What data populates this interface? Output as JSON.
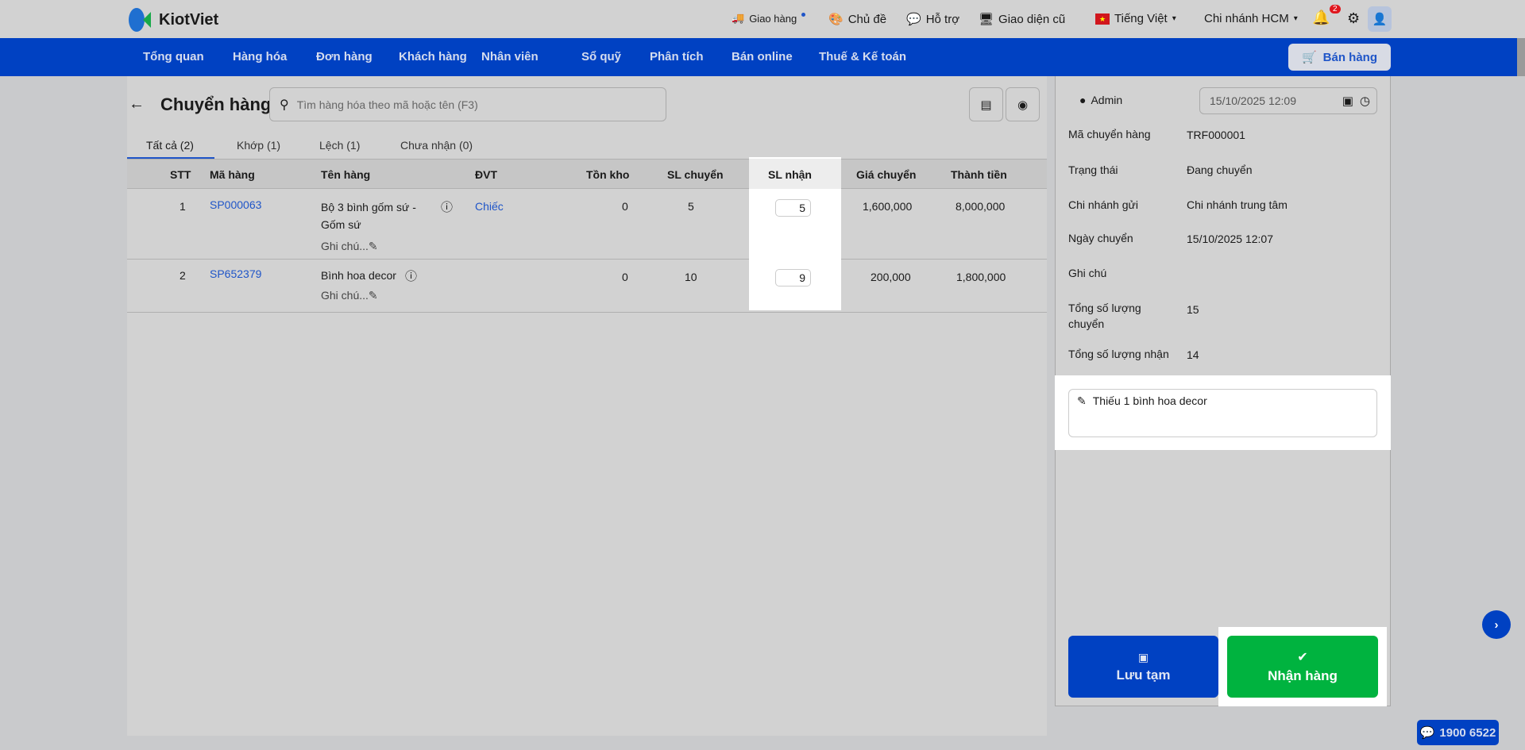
{
  "brand": {
    "name": "KiotViet"
  },
  "topbar": {
    "delivery": "Giao hàng",
    "theme": "Chủ đề",
    "support": "Hỗ trợ",
    "old_ui": "Giao diện cũ",
    "language": "Tiếng Việt",
    "branch": "Chi nhánh HCM",
    "notifications": "2"
  },
  "nav": {
    "items": [
      "Tổng quan",
      "Hàng hóa",
      "Đơn hàng",
      "Khách hàng",
      "Nhân viên",
      "Sổ quỹ",
      "Phân tích",
      "Bán online",
      "Thuế & Kế toán"
    ],
    "sell_button": "Bán hàng"
  },
  "page": {
    "title": "Chuyển hàng",
    "search_placeholder": "Tìm hàng hóa theo mã hoặc tên (F3)"
  },
  "tabs": [
    {
      "label": "Tất cả (2)",
      "active": true
    },
    {
      "label": "Khớp (1)"
    },
    {
      "label": "Lệch (1)"
    },
    {
      "label": "Chưa nhận (0)"
    }
  ],
  "table": {
    "headers": [
      "STT",
      "Mã hàng",
      "Tên hàng",
      "ĐVT",
      "Tồn kho",
      "SL chuyển",
      "SL nhận",
      "Giá chuyển",
      "Thành tiền"
    ],
    "rows": [
      {
        "stt": "1",
        "code": "SP000063",
        "name": "Bộ 3 bình gốm sứ - Gốm sứ",
        "note": "Ghi chú...",
        "unit": "Chiếc",
        "stock": "0",
        "sent": "5",
        "received": "5",
        "price": "1,600,000",
        "total": "8,000,000"
      },
      {
        "stt": "2",
        "code": "SP652379",
        "name": "Bình hoa decor",
        "note": "Ghi chú...",
        "unit": "",
        "stock": "0",
        "sent": "10",
        "received": "9",
        "price": "200,000",
        "total": "1,800,000"
      }
    ]
  },
  "panel": {
    "user": "Admin",
    "datetime": "15/10/2025 12:09",
    "fields": [
      {
        "label": "Mã chuyển hàng",
        "value": "TRF000001"
      },
      {
        "label": "Trạng thái",
        "value": "Đang chuyển"
      },
      {
        "label": "Chi nhánh gửi",
        "value": "Chi nhánh trung tâm"
      },
      {
        "label": "Ngày chuyển",
        "value": "15/10/2025 12:07"
      },
      {
        "label": "Ghi chú",
        "value": ""
      },
      {
        "label": "Tổng số lượng chuyển",
        "value": "15"
      },
      {
        "label": "Tổng số lượng nhận",
        "value": "14"
      }
    ],
    "note_text": "Thiếu 1 bình hoa decor",
    "save_draft": "Lưu tạm",
    "receive": "Nhận hàng"
  },
  "hotline": "1900 6522",
  "colors": {
    "primary": "#0041c2",
    "success": "#00b33f",
    "link": "#1f55c8"
  }
}
